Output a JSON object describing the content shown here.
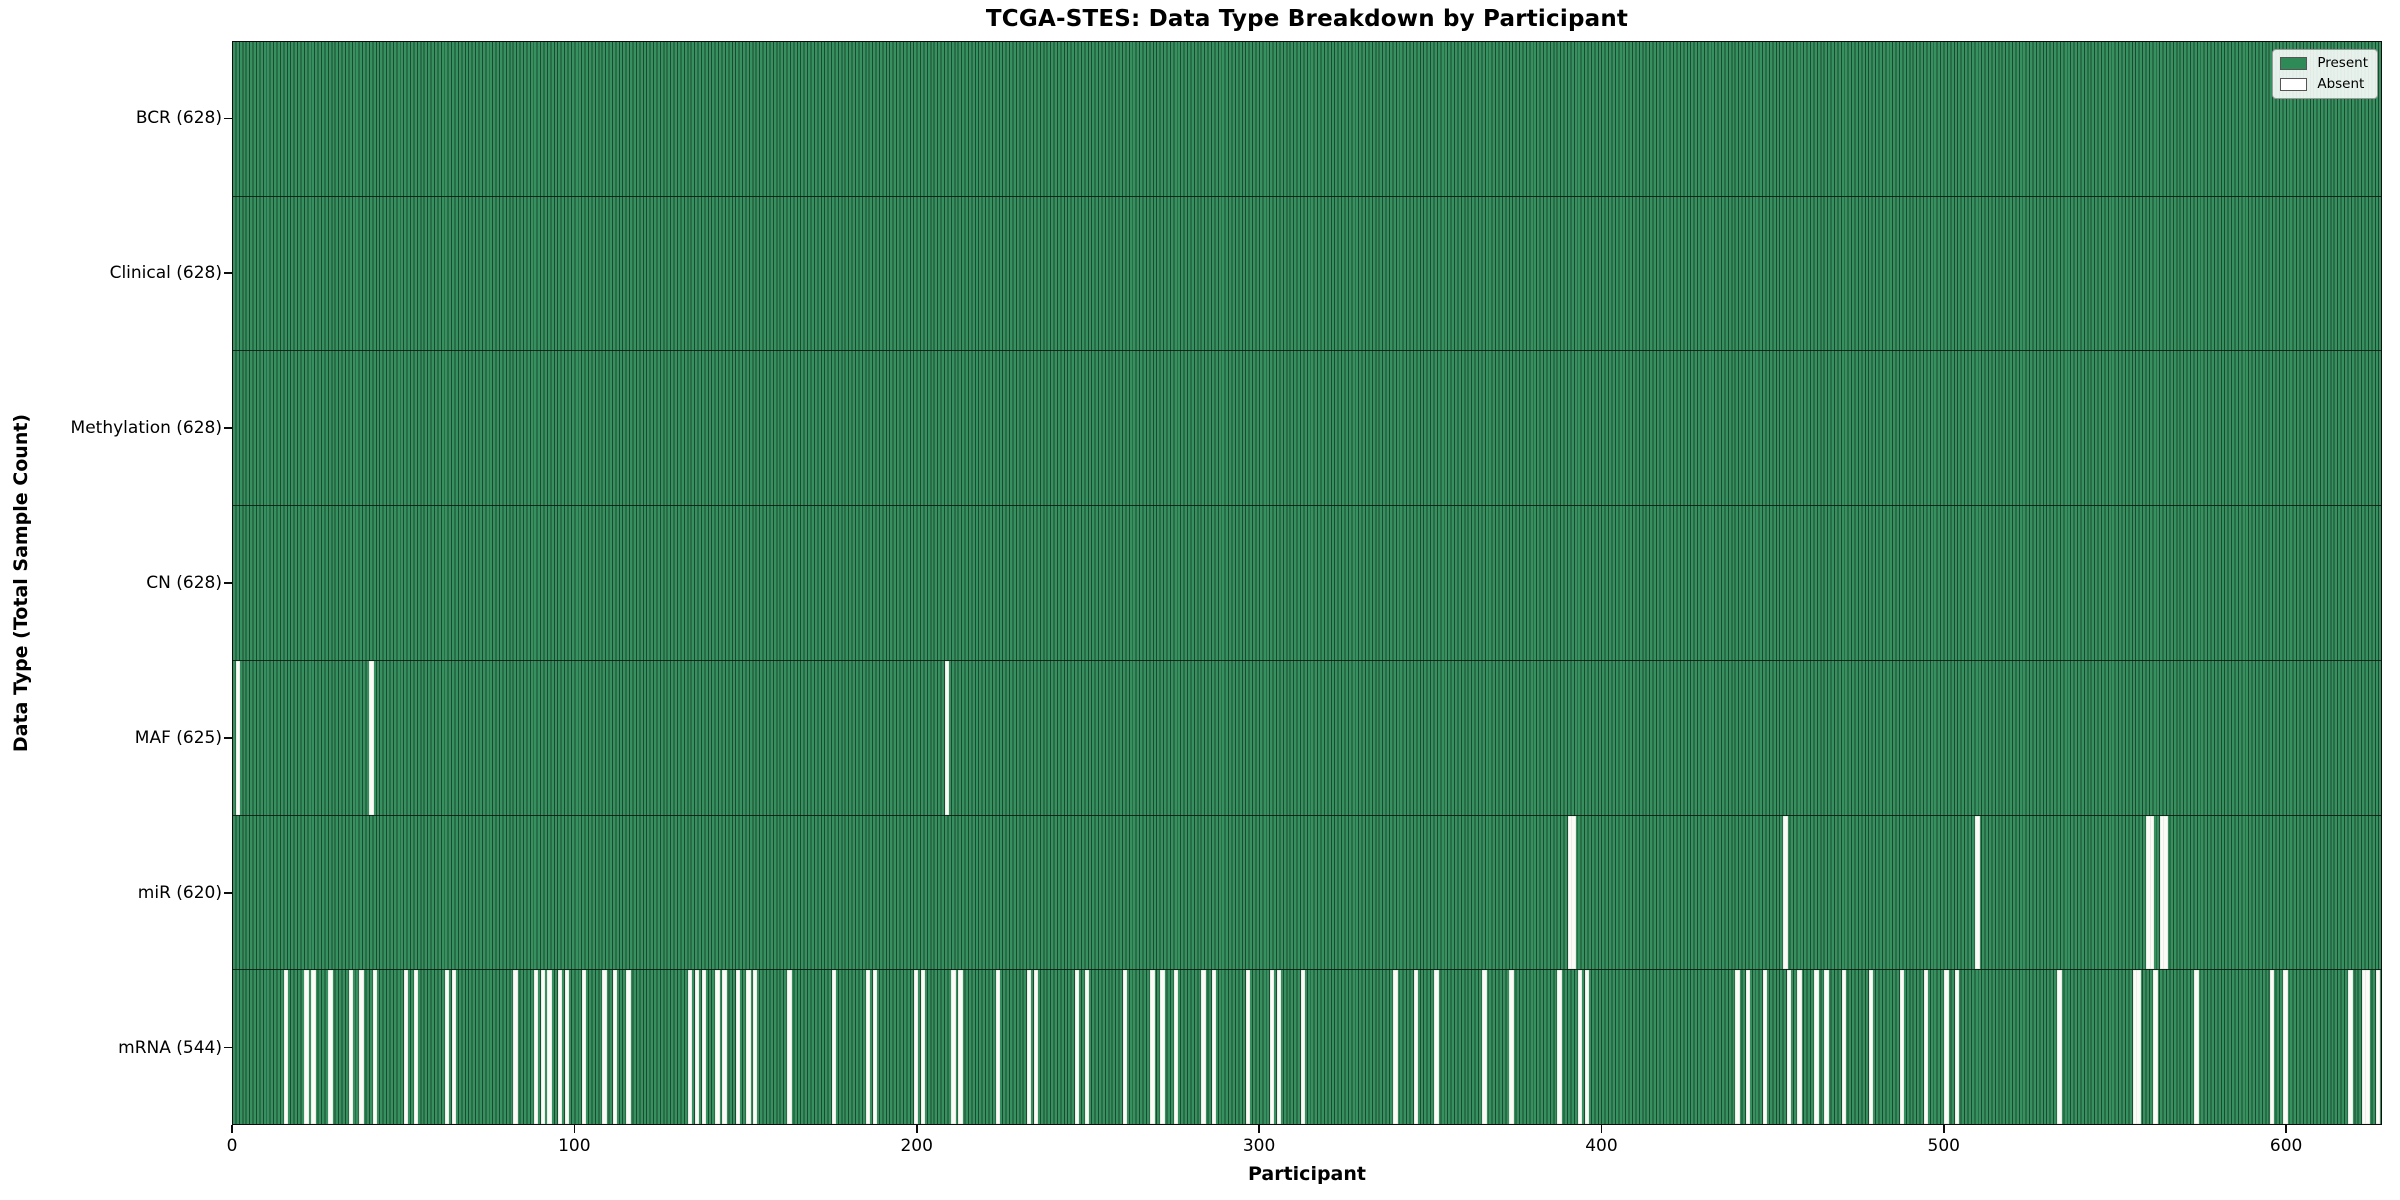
{
  "title": "TCGA-STES: Data Type Breakdown by Participant",
  "xlabel": "Participant",
  "ylabel": "Data Type (Total Sample Count)",
  "colors": {
    "present": "#2e8b57",
    "present_fill": "#37905f",
    "bar_edge": "#1b4a2f",
    "absent": "#fbfbf7",
    "spine": "#0d0d0d"
  },
  "chart_data": {
    "type": "heatmap",
    "title": "TCGA-STES: Data Type Breakdown by Participant",
    "xlabel": "Participant",
    "ylabel": "Data Type (Total Sample Count)",
    "x_range": [
      0,
      628
    ],
    "x_ticks": [
      0,
      100,
      200,
      300,
      400,
      500,
      600
    ],
    "total_participants": 628,
    "legend_entries": [
      {
        "label": "Present",
        "color": "#2e8b57"
      },
      {
        "label": "Absent",
        "color": "#ffffff"
      }
    ],
    "rows": [
      {
        "name": "BCR",
        "label": "BCR (628)",
        "count": 628,
        "absent": []
      },
      {
        "name": "Clinical",
        "label": "Clinical (628)",
        "count": 628,
        "absent": []
      },
      {
        "name": "Methylation",
        "label": "Methylation (628)",
        "count": 628,
        "absent": []
      },
      {
        "name": "CN",
        "label": "CN (628)",
        "count": 628,
        "absent": []
      },
      {
        "name": "MAF",
        "label": "MAF (625)",
        "count": 625,
        "absent": [
          1,
          40,
          208
        ]
      },
      {
        "name": "miR",
        "label": "miR (620)",
        "count": 620,
        "absent": [
          390,
          391,
          453,
          509,
          559,
          560,
          563,
          564
        ]
      },
      {
        "name": "mRNA",
        "label": "mRNA (544)",
        "count": 544,
        "absent": [
          15,
          21,
          23,
          28,
          34,
          37,
          41,
          50,
          53,
          62,
          64,
          82,
          88,
          90,
          92,
          95,
          97,
          102,
          108,
          111,
          115,
          133,
          135,
          137,
          141,
          143,
          147,
          150,
          152,
          162,
          175,
          185,
          187,
          199,
          201,
          210,
          212,
          223,
          232,
          234,
          246,
          249,
          260,
          268,
          271,
          275,
          283,
          286,
          296,
          303,
          305,
          312,
          339,
          345,
          351,
          365,
          373,
          387,
          393,
          395,
          439,
          442,
          447,
          454,
          457,
          462,
          465,
          470,
          478,
          487,
          494,
          500,
          503,
          533,
          555,
          556,
          561,
          573,
          595,
          599,
          618,
          622,
          623,
          626
        ]
      }
    ]
  }
}
